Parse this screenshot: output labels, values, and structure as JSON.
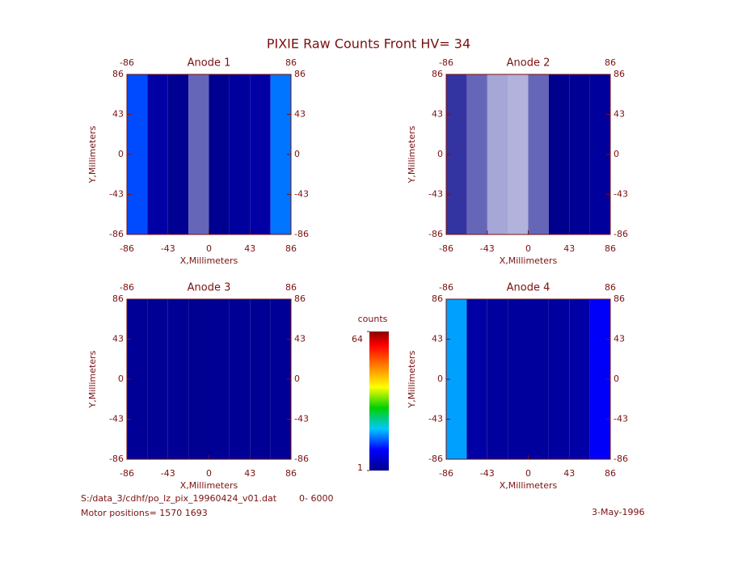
{
  "title": "PIXIE Raw Counts Front HV= 34",
  "colorbar": {
    "label": "counts",
    "lim": [
      1,
      64
    ],
    "ticks": [
      1,
      64
    ]
  },
  "footer": {
    "file": "S:/data_3/cdhf/po_lz_pix_19960424_v01.dat",
    "range": "0- 6000",
    "motor": "Motor positions= 1570 1693",
    "date": "3-May-1996"
  },
  "chart_data": [
    {
      "type": "heatmap",
      "title": "Anode 1",
      "xlabel": "X,Millimeters",
      "ylabel": "Y,Millimeters",
      "x": [
        -75.25,
        -53.75,
        -32.25,
        -10.75,
        10.75,
        32.25,
        53.75,
        75.25
      ],
      "values": [
        14,
        3,
        1.6,
        0.6,
        1.4,
        2.4,
        3,
        16
      ],
      "xlim": [
        -86,
        86
      ],
      "ylim": [
        -86,
        86
      ],
      "xticks": [
        -86,
        -43,
        0,
        43,
        86
      ],
      "yticks": [
        -86,
        -43,
        0,
        43,
        86
      ],
      "x2ticks": [
        -86,
        86
      ],
      "y2ticks": [
        -86,
        -43,
        0,
        43,
        86
      ]
    },
    {
      "type": "heatmap",
      "title": "Anode 2",
      "xlabel": "X,Millimeters",
      "ylabel": "Y,Millimeters",
      "x": [
        -75.25,
        -53.75,
        -32.25,
        -10.75,
        10.75,
        32.25,
        53.75,
        75.25
      ],
      "values": [
        0.8,
        0.6,
        0.35,
        0.3,
        0.6,
        1.3,
        1.8,
        2.4
      ],
      "xlim": [
        -86,
        86
      ],
      "ylim": [
        -86,
        86
      ],
      "xticks": [
        -86,
        -43,
        0,
        43,
        86
      ],
      "yticks": [
        -86,
        -43,
        0,
        43,
        86
      ],
      "x2ticks": [
        -86,
        86
      ],
      "y2ticks": [
        -86,
        -43,
        0,
        43,
        86
      ]
    },
    {
      "type": "heatmap",
      "title": "Anode 3",
      "xlabel": "X,Millimeters",
      "ylabel": "Y,Millimeters",
      "x": [
        -75.25,
        -53.75,
        -32.25,
        -10.75,
        10.75,
        32.25,
        53.75,
        75.25
      ],
      "values": [
        2,
        1.8,
        1.7,
        1.5,
        1.7,
        1.8,
        1.8,
        2
      ],
      "xlim": [
        -86,
        86
      ],
      "ylim": [
        -86,
        86
      ],
      "xticks": [
        -86,
        -43,
        0,
        43,
        86
      ],
      "yticks": [
        -86,
        -43,
        0,
        43,
        86
      ],
      "x2ticks": [
        -86,
        86
      ],
      "y2ticks": [
        -86,
        -43,
        0,
        43,
        86
      ]
    },
    {
      "type": "heatmap",
      "title": "Anode 4",
      "xlabel": "X,Millimeters",
      "ylabel": "Y,Millimeters",
      "x": [
        -75.25,
        -53.75,
        -32.25,
        -10.75,
        10.75,
        32.25,
        53.75,
        75.25
      ],
      "values": [
        18,
        3,
        2.5,
        2.4,
        2.5,
        2.6,
        3,
        10
      ],
      "xlim": [
        -86,
        86
      ],
      "ylim": [
        -86,
        86
      ],
      "xticks": [
        -86,
        -43,
        0,
        43,
        86
      ],
      "yticks": [
        -86,
        -43,
        0,
        43,
        86
      ],
      "x2ticks": [
        -86,
        86
      ],
      "y2ticks": [
        -86,
        -43,
        0,
        43,
        86
      ]
    }
  ]
}
